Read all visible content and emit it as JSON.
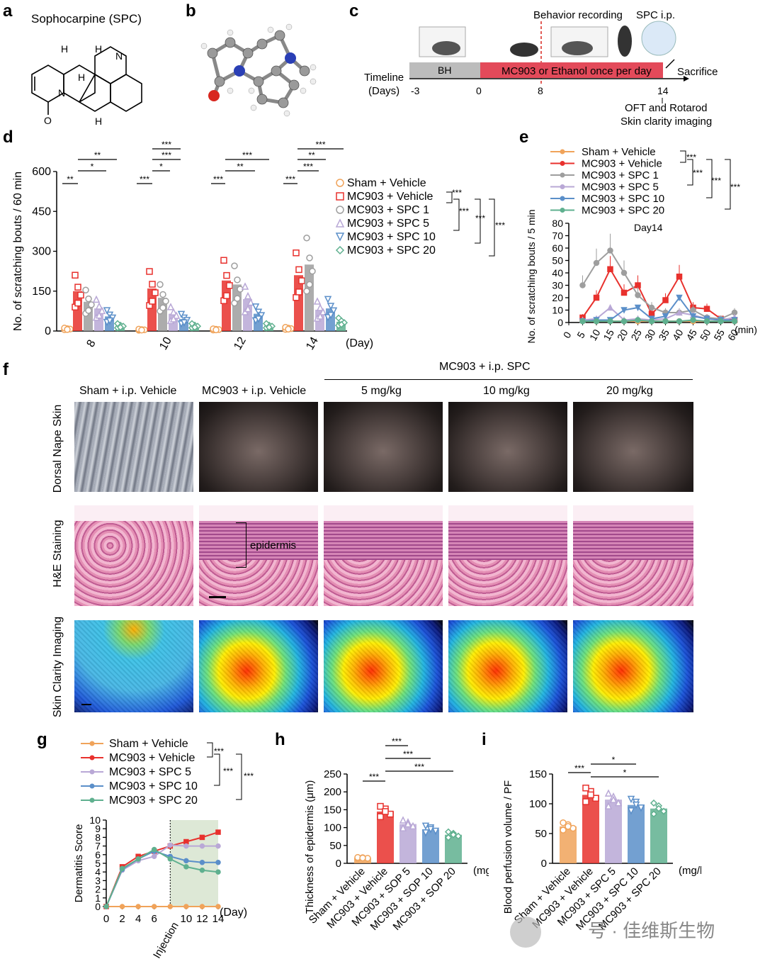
{
  "panels": {
    "a": "a",
    "b": "b",
    "c": "c",
    "d": "d",
    "e": "e",
    "f": "f",
    "g": "g",
    "h": "h",
    "i": "i"
  },
  "panel_a": {
    "title": "Sophocarpine (SPC)",
    "atoms": [
      "H",
      "H",
      "H",
      "N",
      "N",
      "O",
      "H"
    ]
  },
  "panel_c": {
    "behavior": "Behavior recording",
    "spc": "SPC i.p.",
    "timeline": "Timeline",
    "days": "(Days)",
    "bh": "BH",
    "mc903": "MC903 or Ethanol once per day",
    "sacrifice": "Sacrifice",
    "ticks": [
      "-3",
      "0",
      "8",
      "14"
    ],
    "oft": "OFT and Rotarod",
    "clarity": "Skin clarity imaging"
  },
  "legend_groups": {
    "six": [
      "Sham + Vehicle",
      "MC903 + Vehicle",
      "MC903 + SPC 1",
      "MC903 + SPC 5",
      "MC903 + SPC 10",
      "MC903 + SPC 20"
    ],
    "five": [
      "Sham + Vehicle",
      "MC903 + Vehicle",
      "MC903 + SPC 5",
      "MC903 + SPC 10",
      "MC903 + SPC 20"
    ]
  },
  "colors": {
    "sham": "#f0a35a",
    "mc903": "#e8312d",
    "spc1": "#9e9e9e",
    "spc5": "#b9a8d6",
    "spc10": "#5b8fc9",
    "spc20": "#5fb08f",
    "shade": "#dde8d6"
  },
  "chart_data": [
    {
      "id": "d",
      "type": "bar",
      "ylabel": "No. of scratching bouts / 60 min",
      "xlabel": "(Day)",
      "categories": [
        "8",
        "10",
        "12",
        "14"
      ],
      "ylim": [
        0,
        600
      ],
      "yticks": [
        "0",
        "150",
        "300",
        "450",
        "600"
      ],
      "series": [
        {
          "name": "Sham + Vehicle",
          "values": [
            8,
            5,
            6,
            10
          ]
        },
        {
          "name": "MC903 + Vehicle",
          "values": [
            150,
            160,
            190,
            210
          ]
        },
        {
          "name": "MC903 + SPC 1",
          "values": [
            110,
            125,
            175,
            250
          ]
        },
        {
          "name": "MC903 + SPC 5",
          "values": [
            85,
            65,
            120,
            80
          ]
        },
        {
          "name": "MC903 + SPC 10",
          "values": [
            55,
            45,
            65,
            85
          ]
        },
        {
          "name": "MC903 + SPC 20",
          "values": [
            20,
            20,
            20,
            35
          ]
        }
      ],
      "sig_top": [
        "**",
        "***",
        "***",
        "**",
        "**",
        "*",
        "***",
        "**",
        "***",
        "**",
        "***",
        "**",
        "**",
        "***",
        "*",
        "***"
      ],
      "sig_left": "**",
      "sig_legend": [
        "***",
        "***",
        "***",
        "***"
      ]
    },
    {
      "id": "e",
      "type": "line",
      "title": "Day14",
      "ylabel": "No. of scratching bouts / 5 min",
      "xlabel": "(min)",
      "ylim": [
        0,
        80
      ],
      "yticks": [
        "0",
        "10",
        "20",
        "30",
        "40",
        "50",
        "60",
        "70",
        "80"
      ],
      "x": [
        5,
        10,
        15,
        20,
        25,
        30,
        35,
        40,
        45,
        50,
        55,
        60
      ],
      "xticks": [
        "0",
        "5",
        "10",
        "15",
        "20",
        "25",
        "30",
        "35",
        "40",
        "45",
        "50",
        "55",
        "60"
      ],
      "series": [
        {
          "name": "Sham + Vehicle",
          "values": [
            1,
            1,
            1,
            1,
            1,
            1,
            1,
            1,
            1,
            1,
            1,
            1
          ]
        },
        {
          "name": "MC903 + Vehicle",
          "values": [
            4,
            20,
            43,
            24,
            30,
            7,
            18,
            37,
            12,
            11,
            3,
            2
          ]
        },
        {
          "name": "MC903 + SPC 1",
          "values": [
            30,
            48,
            58,
            40,
            22,
            12,
            8,
            8,
            10,
            4,
            3,
            8
          ]
        },
        {
          "name": "MC903 + SPC 5",
          "values": [
            2,
            3,
            12,
            2,
            3,
            2,
            3,
            8,
            6,
            3,
            2,
            4
          ]
        },
        {
          "name": "MC903 + SPC 10",
          "values": [
            1,
            2,
            2,
            10,
            12,
            3,
            5,
            20,
            5,
            3,
            2,
            2
          ]
        },
        {
          "name": "MC903 + SPC 20",
          "values": [
            1,
            1,
            1,
            1,
            2,
            1,
            1,
            1,
            2,
            1,
            1,
            1
          ]
        }
      ],
      "sig": [
        "***",
        "***",
        "***",
        "***"
      ]
    },
    {
      "id": "g",
      "type": "line",
      "ylabel": "Dermatitis Score",
      "xlabel": "(Day)",
      "ylim": [
        0,
        10
      ],
      "yticks": [
        "0",
        "1",
        "2",
        "3",
        "4",
        "5",
        "6",
        "7",
        "8",
        "9",
        "10"
      ],
      "x": [
        0,
        2,
        4,
        6,
        8,
        10,
        12,
        14
      ],
      "xticks": [
        "0",
        "2",
        "4",
        "6",
        "10",
        "12",
        "14"
      ],
      "xtick_vals": [
        0,
        2,
        4,
        6,
        10,
        12,
        14
      ],
      "injection_label": "Injection",
      "injection_x": 8,
      "series": [
        {
          "name": "Sham + Vehicle",
          "values": [
            0,
            0,
            0,
            0,
            0,
            0,
            0,
            0
          ]
        },
        {
          "name": "MC903 + Vehicle",
          "values": [
            0,
            4.6,
            5.8,
            6.4,
            7.0,
            7.5,
            8.0,
            8.6
          ]
        },
        {
          "name": "MC903 + SPC 5",
          "values": [
            0,
            4.2,
            5.3,
            5.8,
            7.1,
            7.0,
            7.0,
            7.0
          ]
        },
        {
          "name": "MC903 + SPC 10",
          "values": [
            0,
            4.3,
            5.5,
            6.4,
            5.8,
            5.3,
            5.1,
            5.1
          ]
        },
        {
          "name": "MC903 + SPC 20",
          "values": [
            0,
            4.4,
            5.5,
            6.6,
            5.5,
            4.6,
            4.2,
            4.0
          ]
        }
      ],
      "sig": [
        "***",
        "***",
        "***"
      ]
    },
    {
      "id": "h",
      "type": "bar",
      "ylabel": "Thickness of epidermis (μm)",
      "unit": "(mg/kg)",
      "ylim": [
        0,
        250
      ],
      "yticks": [
        "0",
        "50",
        "100",
        "150",
        "200",
        "250"
      ],
      "categories": [
        "Sham + Vehicle",
        "MC903 + Vehicle",
        "MC903 + SOP 5",
        "MC903 + SOP 10",
        "MC903 + SOP 20"
      ],
      "values": [
        15,
        145,
        110,
        95,
        80
      ],
      "sig": [
        "***",
        "***",
        "***",
        "***"
      ]
    },
    {
      "id": "i",
      "type": "bar",
      "ylabel": "Blood perfusion volume / PF",
      "unit": "(mg/kg)",
      "ylim": [
        0,
        150
      ],
      "yticks": [
        "0",
        "50",
        "100",
        "150"
      ],
      "categories": [
        "Sham + Vehicle",
        "MC903 + Vehicle",
        "MC903 + SPC 5",
        "MC903 + SPC 10",
        "MC903 + SPC 20"
      ],
      "values": [
        62,
        115,
        107,
        98,
        92
      ],
      "sig": [
        "***",
        "*",
        "*"
      ]
    }
  ],
  "panel_f": {
    "spc_header": "MC903 + i.p. SPC",
    "columns": [
      "Sham + i.p. Vehicle",
      "MC903 + i.p. Vehicle",
      "5 mg/kg",
      "10 mg/kg",
      "20 mg/kg"
    ],
    "rows": [
      "Dorsal Nape Skin",
      "H&E Staining",
      "Skin Clarity Imaging"
    ],
    "epidermis": "epidermis"
  },
  "watermark": "号 · 佳维斯生物"
}
